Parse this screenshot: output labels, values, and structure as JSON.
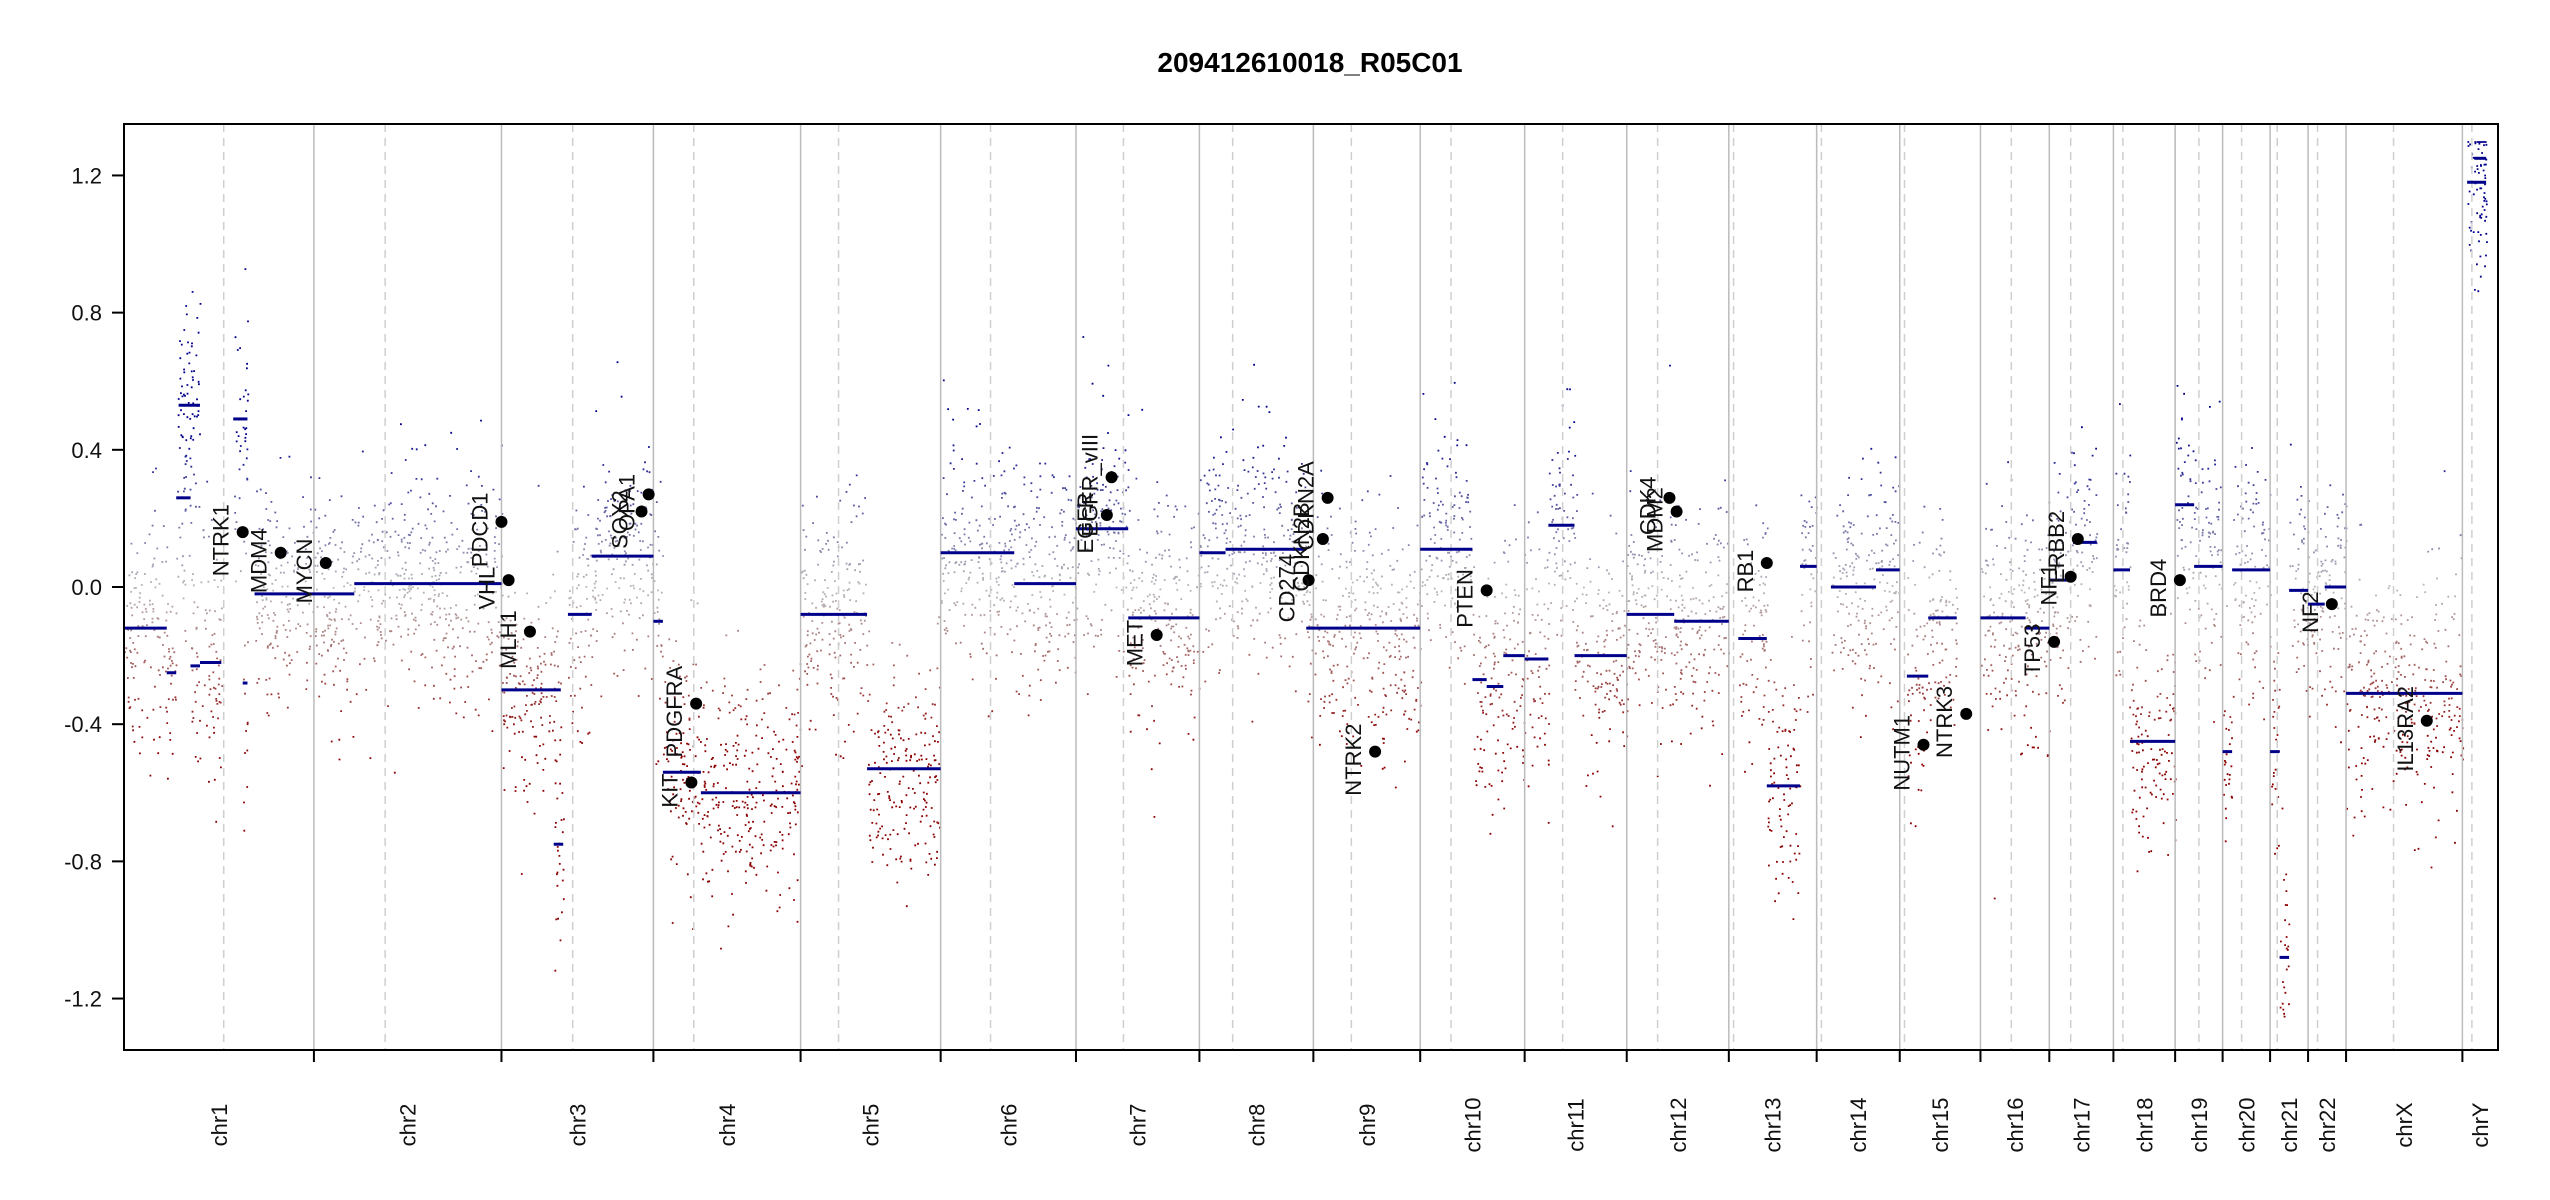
{
  "chart_data": {
    "type": "scatter",
    "title": "209412610018_R05C01",
    "xlabel": "",
    "ylabel": "",
    "ylim": [
      -1.35,
      1.35
    ],
    "y_ticks": [
      {
        "value": 1.2,
        "label": "1.2"
      },
      {
        "value": 0.8,
        "label": "0.8"
      },
      {
        "value": 0.4,
        "label": "0.4"
      },
      {
        "value": 0.0,
        "label": "0.0"
      },
      {
        "value": -0.4,
        "label": "-0.4"
      },
      {
        "value": -0.8,
        "label": "-0.8"
      },
      {
        "value": -1.2,
        "label": "-1.2"
      }
    ],
    "grid": false,
    "colors": {
      "gain": "#00008B",
      "loss": "#8B0000",
      "neutral": "#b8b8b8",
      "segment": "#00008B",
      "boundary": "#bbbbbb",
      "centromere": "#cfcfcf"
    },
    "chromosomes": [
      {
        "name": "chr1",
        "start": 0.0,
        "end": 0.08,
        "cen": 0.042
      },
      {
        "name": "chr2",
        "start": 0.08,
        "end": 0.159,
        "cen": 0.11
      },
      {
        "name": "chr3",
        "start": 0.159,
        "end": 0.223,
        "cen": 0.189
      },
      {
        "name": "chr4",
        "start": 0.223,
        "end": 0.285,
        "cen": 0.24
      },
      {
        "name": "chr5",
        "start": 0.285,
        "end": 0.344,
        "cen": 0.301
      },
      {
        "name": "chr6",
        "start": 0.344,
        "end": 0.401,
        "cen": 0.365
      },
      {
        "name": "chr7",
        "start": 0.401,
        "end": 0.453,
        "cen": 0.421
      },
      {
        "name": "chr8",
        "start": 0.453,
        "end": 0.501,
        "cen": 0.467
      },
      {
        "name": "chr9",
        "start": 0.501,
        "end": 0.546,
        "cen": 0.517
      },
      {
        "name": "chr10",
        "start": 0.546,
        "end": 0.59,
        "cen": 0.559
      },
      {
        "name": "chr11",
        "start": 0.59,
        "end": 0.633,
        "cen": 0.606
      },
      {
        "name": "chr12",
        "start": 0.633,
        "end": 0.676,
        "cen": 0.646
      },
      {
        "name": "chr13",
        "start": 0.676,
        "end": 0.713,
        "cen": 0.678
      },
      {
        "name": "chr14",
        "start": 0.713,
        "end": 0.748,
        "cen": 0.715
      },
      {
        "name": "chr15",
        "start": 0.748,
        "end": 0.782,
        "cen": 0.75
      },
      {
        "name": "chr16",
        "start": 0.782,
        "end": 0.811,
        "cen": 0.795
      },
      {
        "name": "chr17",
        "start": 0.811,
        "end": 0.838,
        "cen": 0.82
      },
      {
        "name": "chr18",
        "start": 0.838,
        "end": 0.864,
        "cen": 0.842
      },
      {
        "name": "chr19",
        "start": 0.864,
        "end": 0.884,
        "cen": 0.874
      },
      {
        "name": "chr20",
        "start": 0.884,
        "end": 0.904,
        "cen": 0.892
      },
      {
        "name": "chr21",
        "start": 0.904,
        "end": 0.92,
        "cen": 0.907
      },
      {
        "name": "chr22",
        "start": 0.92,
        "end": 0.936,
        "cen": 0.924
      },
      {
        "name": "chrX",
        "start": 0.936,
        "end": 0.985,
        "cen": 0.956
      },
      {
        "name": "chrY",
        "start": 0.985,
        "end": 1.0,
        "cen": 0.989
      }
    ],
    "segments": [
      {
        "x0": 0.0,
        "x1": 0.018,
        "y": -0.12
      },
      {
        "x0": 0.018,
        "x1": 0.022,
        "y": -0.25
      },
      {
        "x0": 0.022,
        "x1": 0.028,
        "y": 0.26
      },
      {
        "x0": 0.028,
        "x1": 0.032,
        "y": -0.23
      },
      {
        "x0": 0.032,
        "x1": 0.041,
        "y": -0.22
      },
      {
        "x0": 0.023,
        "x1": 0.032,
        "y": 0.53
      },
      {
        "x0": 0.046,
        "x1": 0.052,
        "y": 0.49
      },
      {
        "x0": 0.05,
        "x1": 0.052,
        "y": -0.28
      },
      {
        "x0": 0.055,
        "x1": 0.097,
        "y": -0.02
      },
      {
        "x0": 0.097,
        "x1": 0.159,
        "y": 0.01
      },
      {
        "x0": 0.159,
        "x1": 0.184,
        "y": -0.3
      },
      {
        "x0": 0.187,
        "x1": 0.197,
        "y": -0.08
      },
      {
        "x0": 0.181,
        "x1": 0.185,
        "y": -0.75
      },
      {
        "x0": 0.197,
        "x1": 0.223,
        "y": 0.09
      },
      {
        "x0": 0.223,
        "x1": 0.227,
        "y": -0.1
      },
      {
        "x0": 0.227,
        "x1": 0.243,
        "y": -0.54
      },
      {
        "x0": 0.243,
        "x1": 0.285,
        "y": -0.6
      },
      {
        "x0": 0.285,
        "x1": 0.313,
        "y": -0.08
      },
      {
        "x0": 0.313,
        "x1": 0.344,
        "y": -0.53
      },
      {
        "x0": 0.344,
        "x1": 0.375,
        "y": 0.1
      },
      {
        "x0": 0.375,
        "x1": 0.401,
        "y": 0.01
      },
      {
        "x0": 0.401,
        "x1": 0.423,
        "y": 0.17
      },
      {
        "x0": 0.423,
        "x1": 0.453,
        "y": -0.09
      },
      {
        "x0": 0.453,
        "x1": 0.464,
        "y": 0.1
      },
      {
        "x0": 0.464,
        "x1": 0.498,
        "y": 0.11
      },
      {
        "x0": 0.498,
        "x1": 0.546,
        "y": -0.12
      },
      {
        "x0": 0.546,
        "x1": 0.568,
        "y": 0.11
      },
      {
        "x0": 0.568,
        "x1": 0.574,
        "y": -0.27
      },
      {
        "x0": 0.574,
        "x1": 0.581,
        "y": -0.29
      },
      {
        "x0": 0.581,
        "x1": 0.59,
        "y": -0.2
      },
      {
        "x0": 0.59,
        "x1": 0.6,
        "y": -0.21
      },
      {
        "x0": 0.6,
        "x1": 0.611,
        "y": 0.18
      },
      {
        "x0": 0.611,
        "x1": 0.633,
        "y": -0.2
      },
      {
        "x0": 0.633,
        "x1": 0.653,
        "y": -0.08
      },
      {
        "x0": 0.653,
        "x1": 0.676,
        "y": -0.1
      },
      {
        "x0": 0.68,
        "x1": 0.692,
        "y": -0.15
      },
      {
        "x0": 0.692,
        "x1": 0.706,
        "y": -0.58
      },
      {
        "x0": 0.706,
        "x1": 0.713,
        "y": 0.06
      },
      {
        "x0": 0.719,
        "x1": 0.738,
        "y": 0.0
      },
      {
        "x0": 0.738,
        "x1": 0.748,
        "y": 0.05
      },
      {
        "x0": 0.751,
        "x1": 0.76,
        "y": -0.26
      },
      {
        "x0": 0.76,
        "x1": 0.772,
        "y": -0.09
      },
      {
        "x0": 0.782,
        "x1": 0.801,
        "y": -0.09
      },
      {
        "x0": 0.801,
        "x1": 0.811,
        "y": -0.12
      },
      {
        "x0": 0.811,
        "x1": 0.821,
        "y": 0.02
      },
      {
        "x0": 0.821,
        "x1": 0.831,
        "y": 0.13
      },
      {
        "x0": 0.838,
        "x1": 0.845,
        "y": 0.05
      },
      {
        "x0": 0.845,
        "x1": 0.864,
        "y": -0.45
      },
      {
        "x0": 0.864,
        "x1": 0.872,
        "y": 0.24
      },
      {
        "x0": 0.872,
        "x1": 0.884,
        "y": 0.06
      },
      {
        "x0": 0.884,
        "x1": 0.888,
        "y": -0.48
      },
      {
        "x0": 0.888,
        "x1": 0.904,
        "y": 0.05
      },
      {
        "x0": 0.904,
        "x1": 0.908,
        "y": -0.48
      },
      {
        "x0": 0.908,
        "x1": 0.912,
        "y": -1.08
      },
      {
        "x0": 0.912,
        "x1": 0.92,
        "y": -0.01
      },
      {
        "x0": 0.92,
        "x1": 0.927,
        "y": -0.05
      },
      {
        "x0": 0.927,
        "x1": 0.936,
        "y": 0.0
      },
      {
        "x0": 0.936,
        "x1": 0.985,
        "y": -0.31
      },
      {
        "x0": 0.987,
        "x1": 0.995,
        "y": 1.18
      },
      {
        "x0": 0.99,
        "x1": 0.995,
        "y": 1.25
      }
    ],
    "genes": [
      {
        "name": "NTRK1",
        "x": 0.05,
        "y": 0.16
      },
      {
        "name": "MDM4",
        "x": 0.066,
        "y": 0.1
      },
      {
        "name": "MYCN",
        "x": 0.085,
        "y": 0.07
      },
      {
        "name": "PDCD1",
        "x": 0.159,
        "y": 0.19
      },
      {
        "name": "VHL",
        "x": 0.162,
        "y": 0.02
      },
      {
        "name": "MLH1",
        "x": 0.171,
        "y": -0.13
      },
      {
        "name": "SOX2",
        "x": 0.218,
        "y": 0.22
      },
      {
        "name": "OPA1",
        "x": 0.221,
        "y": 0.27
      },
      {
        "name": "KIT",
        "x": 0.239,
        "y": -0.57
      },
      {
        "name": "PDGFRA",
        "x": 0.241,
        "y": -0.34
      },
      {
        "name": "EGFR",
        "x": 0.414,
        "y": 0.21
      },
      {
        "name": "EGFR_vIII",
        "x": 0.416,
        "y": 0.32
      },
      {
        "name": "MET",
        "x": 0.435,
        "y": -0.14
      },
      {
        "name": "CD274",
        "x": 0.499,
        "y": 0.02
      },
      {
        "name": "CDKN2B",
        "x": 0.505,
        "y": 0.14
      },
      {
        "name": "CDKN2A",
        "x": 0.507,
        "y": 0.26
      },
      {
        "name": "NTRK2",
        "x": 0.527,
        "y": -0.48
      },
      {
        "name": "PTEN",
        "x": 0.574,
        "y": -0.01
      },
      {
        "name": "CDK4",
        "x": 0.651,
        "y": 0.26
      },
      {
        "name": "MDM2",
        "x": 0.654,
        "y": 0.22
      },
      {
        "name": "RB1",
        "x": 0.692,
        "y": 0.07
      },
      {
        "name": "NUTM1",
        "x": 0.758,
        "y": -0.46
      },
      {
        "name": "NTRK3",
        "x": 0.776,
        "y": -0.37
      },
      {
        "name": "TP53",
        "x": 0.813,
        "y": -0.16
      },
      {
        "name": "NF1",
        "x": 0.82,
        "y": 0.03
      },
      {
        "name": "ERBB2",
        "x": 0.823,
        "y": 0.14
      },
      {
        "name": "BRD4",
        "x": 0.866,
        "y": 0.02
      },
      {
        "name": "NF2",
        "x": 0.93,
        "y": -0.05
      },
      {
        "name": "IL13RA2",
        "x": 0.97,
        "y": -0.39
      }
    ]
  }
}
